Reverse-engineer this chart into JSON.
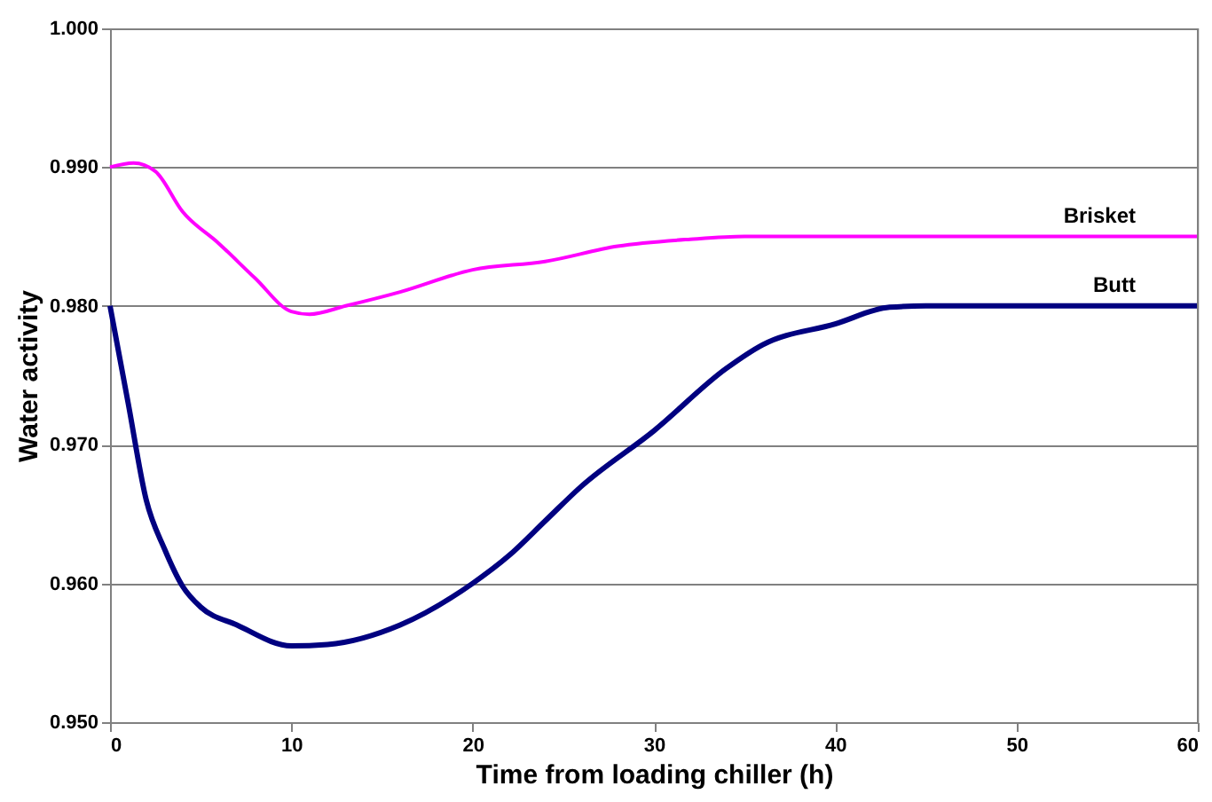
{
  "chart_data": {
    "type": "line",
    "xlabel": "Time from loading chiller (h)",
    "ylabel": "Water activity",
    "xlim": [
      0,
      60
    ],
    "xticks": [
      0,
      10,
      20,
      30,
      40,
      50,
      60
    ],
    "ylim": [
      0.95,
      1.0
    ],
    "yticks": [
      {
        "value": 0.95,
        "label": "0.950"
      },
      {
        "value": 0.96,
        "label": "0.960"
      },
      {
        "value": 0.97,
        "label": "0.970"
      },
      {
        "value": 0.98,
        "label": "0.980"
      },
      {
        "value": 0.99,
        "label": "0.990"
      },
      {
        "value": 1.0,
        "label": "1.000"
      }
    ],
    "grid": "y",
    "legend": false,
    "line_style": "solid",
    "marker": "none",
    "series": [
      {
        "name": "Brisket",
        "color": "#ff00ff",
        "x": [
          0,
          1.3,
          2.5,
          4,
          6,
          8,
          10,
          11,
          13,
          16,
          20,
          24,
          28,
          32,
          35,
          60
        ],
        "values": [
          0.99,
          0.9903,
          0.9897,
          0.9868,
          0.9845,
          0.982,
          0.9796,
          0.9794,
          0.98,
          0.981,
          0.9826,
          0.9832,
          0.9843,
          0.9848,
          0.985,
          0.985
        ]
      },
      {
        "name": "Butt",
        "color": "#000080",
        "x": [
          0,
          1,
          2,
          3,
          4,
          5,
          7,
          10,
          12,
          16,
          20,
          22,
          24,
          26,
          30,
          34,
          36,
          40,
          43,
          45,
          60
        ],
        "values": [
          0.98,
          0.973,
          0.966,
          0.9625,
          0.9598,
          0.9583,
          0.957,
          0.9555,
          0.9556,
          0.957,
          0.96,
          0.962,
          0.9645,
          0.967,
          0.971,
          0.9755,
          0.9772,
          0.9787,
          0.9799,
          0.98,
          0.98
        ]
      }
    ]
  }
}
